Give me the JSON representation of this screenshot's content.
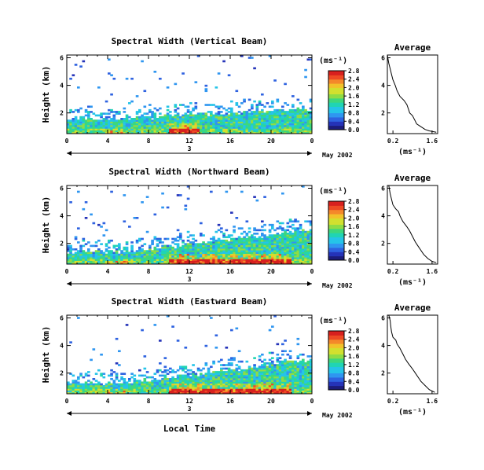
{
  "figure": {
    "x_axis_label": "Local Time",
    "date_label": "May 2002",
    "day_label": "3",
    "y_axis_label": "Height (km)",
    "colorbar_unit": "(ms⁻¹)",
    "average_title": "Average",
    "average_xlabel": "(ms⁻¹)"
  },
  "colors": {
    "colormap": [
      "#1c1c7a",
      "#2533b8",
      "#2e62e0",
      "#2f96f0",
      "#25c4e8",
      "#20d4b4",
      "#3ed77c",
      "#8fdc45",
      "#d2e02f",
      "#f2c22a",
      "#f4892a",
      "#ee4a24",
      "#d8201e"
    ]
  },
  "chart_data": [
    {
      "type": "heatmap",
      "title": "Spectral Width (Vertical Beam)",
      "xlabel": "Local Time",
      "ylabel": "Height (km)",
      "xlim": [
        0,
        24
      ],
      "ylim": [
        0.5,
        6.2
      ],
      "x_ticks": [
        "0",
        "4",
        "8",
        "12",
        "16",
        "20",
        "0"
      ],
      "y_ticks": [
        "2",
        "4",
        "6"
      ],
      "colorbar": {
        "label": "(ms⁻¹)",
        "min": 0.0,
        "max": 2.8,
        "ticks": [
          "0.0",
          "0.4",
          "0.8",
          "1.2",
          "1.6",
          "2.0",
          "2.4",
          "2.8"
        ]
      },
      "description_values": {
        "layer_top_km": [
          1.6,
          2.3
        ],
        "peak_width_local_time": [
          10,
          13
        ]
      },
      "average_profile": {
        "title": "Average",
        "xlabel": "(ms⁻¹)",
        "xlim": [
          0.0,
          1.8
        ],
        "x_ticks": [
          "0.2",
          "1.6"
        ],
        "y_ticks": [
          "2",
          "4",
          "6"
        ],
        "points": [
          [
            0.0,
            6.2
          ],
          [
            0.05,
            5.6
          ],
          [
            0.1,
            5.2
          ],
          [
            0.15,
            4.8
          ],
          [
            0.2,
            4.4
          ],
          [
            0.28,
            4.0
          ],
          [
            0.35,
            3.6
          ],
          [
            0.45,
            3.2
          ],
          [
            0.6,
            2.9
          ],
          [
            0.7,
            2.6
          ],
          [
            0.75,
            2.3
          ],
          [
            0.8,
            2.0
          ],
          [
            0.9,
            1.8
          ],
          [
            0.95,
            1.6
          ],
          [
            1.0,
            1.4
          ],
          [
            1.05,
            1.2
          ],
          [
            1.2,
            1.0
          ],
          [
            1.35,
            0.8
          ],
          [
            1.5,
            0.7
          ],
          [
            1.75,
            0.6
          ]
        ]
      }
    },
    {
      "type": "heatmap",
      "title": "Spectral Width (Northward Beam)",
      "xlabel": "Local Time",
      "ylabel": "Height (km)",
      "xlim": [
        0,
        24
      ],
      "ylim": [
        0.5,
        6.2
      ],
      "x_ticks": [
        "0",
        "4",
        "8",
        "12",
        "16",
        "20",
        "0"
      ],
      "y_ticks": [
        "2",
        "4",
        "6"
      ],
      "colorbar": {
        "label": "(ms⁻¹)",
        "min": 0.0,
        "max": 2.8,
        "ticks": [
          "0.0",
          "0.4",
          "0.8",
          "1.2",
          "1.6",
          "2.0",
          "2.4",
          "2.8"
        ]
      },
      "description_values": {
        "layer_top_km": [
          1.4,
          3.0
        ],
        "peak_width_local_time": [
          10,
          22
        ]
      },
      "average_profile": {
        "title": "Average",
        "xlabel": "(ms⁻¹)",
        "xlim": [
          0.0,
          1.8
        ],
        "x_ticks": [
          "0.2",
          "1.6"
        ],
        "y_ticks": [
          "2",
          "4",
          "6"
        ],
        "points": [
          [
            0.05,
            6.2
          ],
          [
            0.1,
            5.6
          ],
          [
            0.15,
            5.2
          ],
          [
            0.2,
            4.8
          ],
          [
            0.3,
            4.5
          ],
          [
            0.4,
            4.3
          ],
          [
            0.45,
            4.0
          ],
          [
            0.55,
            3.6
          ],
          [
            0.7,
            3.2
          ],
          [
            0.8,
            2.9
          ],
          [
            0.9,
            2.5
          ],
          [
            1.0,
            2.1
          ],
          [
            1.1,
            1.8
          ],
          [
            1.2,
            1.5
          ],
          [
            1.3,
            1.2
          ],
          [
            1.45,
            0.9
          ],
          [
            1.6,
            0.7
          ],
          [
            1.75,
            0.6
          ]
        ]
      }
    },
    {
      "type": "heatmap",
      "title": "Spectral Width (Eastward Beam)",
      "xlabel": "Local Time",
      "ylabel": "Height (km)",
      "xlim": [
        0,
        24
      ],
      "ylim": [
        0.5,
        6.2
      ],
      "x_ticks": [
        "0",
        "4",
        "8",
        "12",
        "16",
        "20",
        "0"
      ],
      "y_ticks": [
        "2",
        "4",
        "6"
      ],
      "colorbar": {
        "label": "(ms⁻¹)",
        "min": 0.0,
        "max": 2.8,
        "ticks": [
          "0.0",
          "0.4",
          "0.8",
          "1.2",
          "1.6",
          "2.0",
          "2.4",
          "2.8"
        ]
      },
      "description_values": {
        "layer_top_km": [
          1.3,
          3.0
        ],
        "peak_width_local_time": [
          10,
          22
        ]
      },
      "average_profile": {
        "title": "Average",
        "xlabel": "(ms⁻¹)",
        "xlim": [
          0.0,
          1.8
        ],
        "x_ticks": [
          "0.2",
          "1.6"
        ],
        "y_ticks": [
          "2",
          "4",
          "6"
        ],
        "points": [
          [
            0.05,
            6.2
          ],
          [
            0.1,
            5.8
          ],
          [
            0.12,
            5.4
          ],
          [
            0.15,
            5.0
          ],
          [
            0.2,
            4.6
          ],
          [
            0.3,
            4.4
          ],
          [
            0.35,
            4.1
          ],
          [
            0.45,
            3.8
          ],
          [
            0.55,
            3.4
          ],
          [
            0.65,
            3.0
          ],
          [
            0.75,
            2.7
          ],
          [
            0.9,
            2.3
          ],
          [
            1.0,
            2.0
          ],
          [
            1.1,
            1.7
          ],
          [
            1.2,
            1.4
          ],
          [
            1.35,
            1.1
          ],
          [
            1.5,
            0.8
          ],
          [
            1.7,
            0.6
          ]
        ]
      }
    }
  ]
}
